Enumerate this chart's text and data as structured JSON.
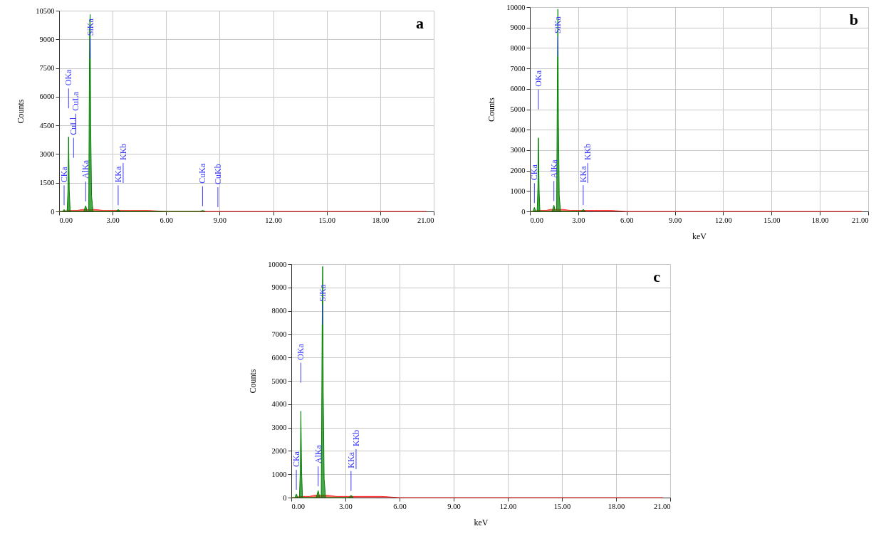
{
  "chart_data": [
    {
      "type": "area",
      "ylabel": "Counts",
      "xlim": [
        0,
        21
      ],
      "ylim": [
        0,
        10500
      ],
      "xticks": [
        {
          "value": 0,
          "label": "0.00"
        },
        {
          "value": 3,
          "label": "3.00"
        },
        {
          "value": 6,
          "label": "6.00"
        },
        {
          "value": 9,
          "label": "9.00"
        },
        {
          "value": 12,
          "label": "12.00"
        },
        {
          "value": 15,
          "label": "15.00"
        },
        {
          "value": 18,
          "label": "18.00"
        },
        {
          "value": 21,
          "label": "21.00"
        }
      ],
      "yticks": [
        0,
        1500,
        3000,
        4500,
        6000,
        7500,
        9000,
        10500
      ],
      "grid": true,
      "series": [
        {
          "color": "#ff2a2a",
          "x": [
            0,
            0.2,
            0.5,
            0.8,
            1.0,
            1.3,
            2.0,
            2.5,
            3.0,
            4.0,
            5.0,
            6.0,
            8.0,
            10,
            20.6
          ],
          "values": [
            0,
            0,
            50,
            50,
            50,
            100,
            100,
            50,
            50,
            50,
            50,
            0,
            0,
            0,
            0
          ]
        },
        {
          "color": "#008000",
          "x": [
            0,
            0.2,
            0.28,
            0.36,
            0.45,
            0.5,
            0.53,
            0.57,
            0.62,
            1.38,
            1.49,
            1.58,
            1.66,
            1.71,
            1.74,
            1.77,
            1.82,
            1.9,
            3.2,
            3.31,
            3.45,
            7.9,
            8.04,
            8.2
          ],
          "values": [
            0,
            0,
            100,
            0,
            0,
            1200,
            3900,
            1100,
            0,
            0,
            300,
            0,
            0,
            9600,
            10300,
            4500,
            800,
            0,
            0,
            100,
            0,
            0,
            50,
            0
          ]
        }
      ],
      "ref_lines": [
        {
          "axis": "x",
          "value": 0.28,
          "label": "CKa",
          "color": "#3a3aff"
        },
        {
          "axis": "x",
          "value": 0.53,
          "label": "OKa",
          "color": "#3a3aff"
        },
        {
          "axis": "x",
          "value": 0.81,
          "label": "CuLl",
          "color": "#3a3aff"
        },
        {
          "axis": "x",
          "value": 0.93,
          "label": "CuLa",
          "color": "#3a3aff"
        },
        {
          "axis": "x",
          "value": 1.49,
          "label": "AlKa",
          "color": "#3a3aff"
        },
        {
          "axis": "x",
          "value": 1.74,
          "label": "SiKa",
          "color": "#3a3aff"
        },
        {
          "axis": "x",
          "value": 3.31,
          "label": "KKa",
          "color": "#3a3aff"
        },
        {
          "axis": "x",
          "value": 3.59,
          "label": "KKb",
          "color": "#3a3aff"
        },
        {
          "axis": "x",
          "value": 8.04,
          "label": "CuKa",
          "color": "#3a3aff"
        },
        {
          "axis": "x",
          "value": 8.9,
          "label": "CuKb",
          "color": "#3a3aff"
        }
      ],
      "annotations": [
        "a"
      ]
    },
    {
      "type": "area",
      "ylabel": "Counts",
      "xlabel": "keV",
      "xlim": [
        0,
        21
      ],
      "ylim": [
        0,
        10000
      ],
      "xticks": [
        {
          "value": 0,
          "label": "0.00"
        },
        {
          "value": 3,
          "label": "3.00"
        },
        {
          "value": 6,
          "label": "6.00"
        },
        {
          "value": 9,
          "label": "9.00"
        },
        {
          "value": 12,
          "label": "12.00"
        },
        {
          "value": 15,
          "label": "15.00"
        },
        {
          "value": 18,
          "label": "18.00"
        },
        {
          "value": 21,
          "label": "21.00"
        }
      ],
      "yticks": [
        0,
        1000,
        2000,
        3000,
        4000,
        5000,
        6000,
        7000,
        8000,
        9000,
        10000
      ],
      "grid": true,
      "series": [
        {
          "color": "#ff2a2a",
          "x": [
            0,
            0.2,
            0.5,
            0.8,
            1.0,
            1.3,
            2.0,
            2.5,
            3.0,
            4.0,
            5.0,
            6.0,
            8.0,
            10,
            20.6
          ],
          "values": [
            0,
            0,
            50,
            50,
            50,
            100,
            100,
            50,
            50,
            50,
            50,
            0,
            0,
            0,
            0
          ]
        },
        {
          "color": "#008000",
          "x": [
            0,
            0.2,
            0.28,
            0.36,
            0.45,
            0.5,
            0.53,
            0.57,
            0.62,
            1.38,
            1.49,
            1.58,
            1.66,
            1.71,
            1.74,
            1.77,
            1.82,
            1.9,
            3.2,
            3.31,
            3.45
          ],
          "values": [
            0,
            0,
            200,
            0,
            0,
            1200,
            3600,
            1100,
            0,
            0,
            300,
            0,
            0,
            7200,
            9900,
            4500,
            800,
            0,
            0,
            100,
            0
          ]
        }
      ],
      "ref_lines": [
        {
          "axis": "x",
          "value": 0.28,
          "label": "CKa",
          "color": "#3a3aff"
        },
        {
          "axis": "x",
          "value": 0.53,
          "label": "OKa",
          "color": "#3a3aff"
        },
        {
          "axis": "x",
          "value": 1.49,
          "label": "AlKa",
          "color": "#3a3aff"
        },
        {
          "axis": "x",
          "value": 1.74,
          "label": "SiKa",
          "color": "#3a3aff"
        },
        {
          "axis": "x",
          "value": 3.31,
          "label": "KKa",
          "color": "#3a3aff"
        },
        {
          "axis": "x",
          "value": 3.59,
          "label": "KKb",
          "color": "#3a3aff"
        }
      ],
      "annotations": [
        "b"
      ]
    },
    {
      "type": "area",
      "ylabel": "Counts",
      "xlabel": "keV",
      "xlim": [
        0,
        21
      ],
      "ylim": [
        0,
        10000
      ],
      "xticks": [
        {
          "value": 0,
          "label": "0.00"
        },
        {
          "value": 3,
          "label": "3.00"
        },
        {
          "value": 6,
          "label": "6.00"
        },
        {
          "value": 9,
          "label": "9.00"
        },
        {
          "value": 12,
          "label": "12.00"
        },
        {
          "value": 15,
          "label": "15.00"
        },
        {
          "value": 18,
          "label": "18.00"
        },
        {
          "value": 21,
          "label": "21.00"
        }
      ],
      "yticks": [
        0,
        1000,
        2000,
        3000,
        4000,
        5000,
        6000,
        7000,
        8000,
        9000,
        10000
      ],
      "grid": true,
      "series": [
        {
          "color": "#ff2a2a",
          "x": [
            0,
            0.2,
            0.5,
            0.8,
            1.0,
            1.3,
            2.0,
            2.5,
            3.0,
            4.0,
            5.0,
            6.0,
            8.0,
            10,
            20.6
          ],
          "values": [
            0,
            0,
            50,
            50,
            50,
            100,
            100,
            50,
            50,
            50,
            50,
            0,
            0,
            0,
            0
          ]
        },
        {
          "color": "#008000",
          "x": [
            0,
            0.2,
            0.28,
            0.36,
            0.45,
            0.5,
            0.53,
            0.57,
            0.62,
            1.38,
            1.49,
            1.58,
            1.66,
            1.71,
            1.74,
            1.77,
            1.82,
            1.9,
            3.2,
            3.31,
            3.45
          ],
          "values": [
            0,
            0,
            150,
            0,
            0,
            1200,
            3700,
            1100,
            0,
            0,
            300,
            0,
            0,
            7200,
            9900,
            4500,
            800,
            0,
            0,
            100,
            0
          ]
        }
      ],
      "ref_lines": [
        {
          "axis": "x",
          "value": 0.28,
          "label": "CKa",
          "color": "#3a3aff"
        },
        {
          "axis": "x",
          "value": 0.53,
          "label": "OKa",
          "color": "#3a3aff"
        },
        {
          "axis": "x",
          "value": 1.49,
          "label": "AlKa",
          "color": "#3a3aff"
        },
        {
          "axis": "x",
          "value": 1.74,
          "label": "SiKa",
          "color": "#3a3aff"
        },
        {
          "axis": "x",
          "value": 3.31,
          "label": "KKa",
          "color": "#3a3aff"
        },
        {
          "axis": "x",
          "value": 3.59,
          "label": "KKb",
          "color": "#3a3aff"
        }
      ],
      "annotations": [
        "c"
      ]
    }
  ]
}
